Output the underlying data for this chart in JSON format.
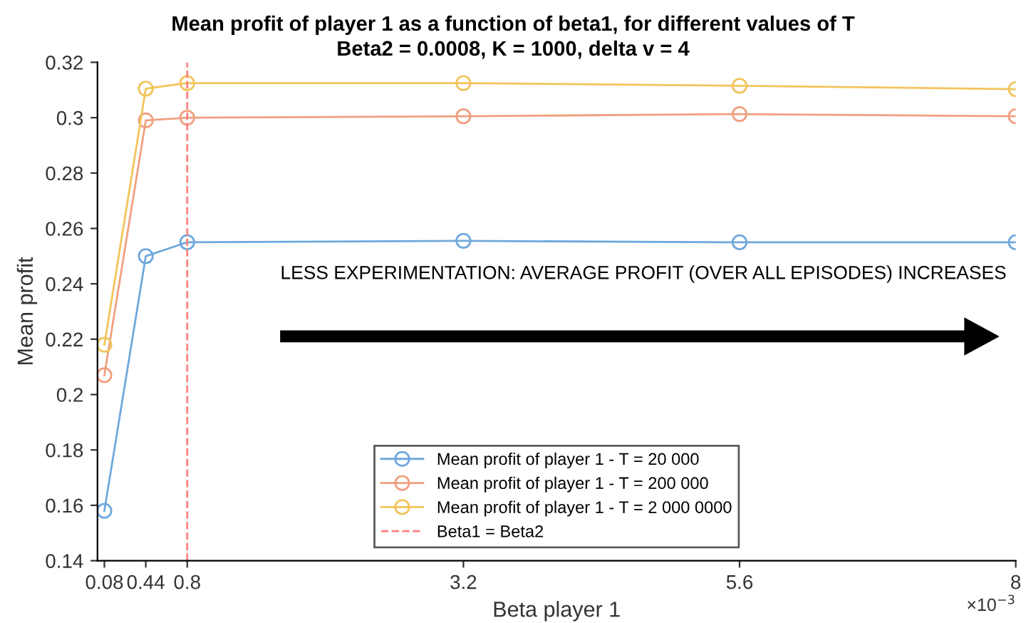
{
  "chart_data": {
    "type": "line",
    "title": "Mean profit of player 1 as a function of beta1, for different values of T",
    "subtitle": "Beta2 = 0.0008, K = 1000, delta v = 4",
    "xlabel": "Beta player 1",
    "ylabel": "Mean profit",
    "x": [
      0.08,
      0.44,
      0.8,
      3.2,
      5.6,
      8
    ],
    "series": [
      {
        "name": "Mean profit of player 1 - T = 20 000",
        "color": "#6fa8dc",
        "values": [
          0.158,
          0.25,
          0.255,
          0.2555,
          0.255,
          0.255
        ]
      },
      {
        "name": "Mean profit of player 1 - T = 200 000",
        "color": "#f0a080",
        "values": [
          0.207,
          0.299,
          0.3,
          0.3005,
          0.3013,
          0.3005
        ]
      },
      {
        "name": "Mean profit of player 1 - T = 2 000 0000",
        "color": "#f2c45c",
        "values": [
          0.218,
          0.3105,
          0.3125,
          0.3125,
          0.3115,
          0.3103
        ]
      },
      {
        "name": "Beta1 = Beta2",
        "color": "#ff8080",
        "x": [
          0.8,
          0.8
        ],
        "values": [
          0.14,
          0.32
        ],
        "marker": "none",
        "line_style": "dashed"
      }
    ],
    "marker": "circle",
    "line_style": "solid",
    "xlim": [
      0.02,
      8
    ],
    "xticks": [
      0.08,
      0.44,
      0.8,
      3.2,
      5.6,
      8
    ],
    "ylim": [
      0.14,
      0.32
    ],
    "yticks": [
      0.14,
      0.16,
      0.18,
      0.2,
      0.22,
      0.24,
      0.26,
      0.28,
      0.3,
      0.32
    ],
    "annotations": [
      "×10$^{−3}$",
      "LESS EXPERIMENTATION: AVERAGE PROFIT (OVER ALL EPISODES) INCREASES"
    ],
    "grid": false,
    "legend": "bottom"
  }
}
